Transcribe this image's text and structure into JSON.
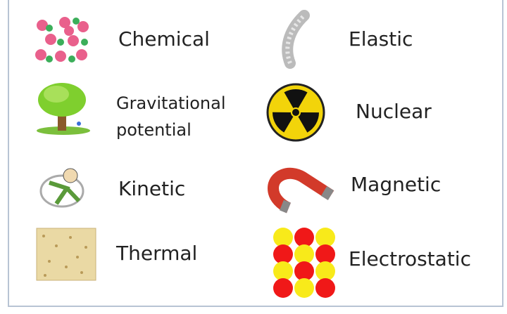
{
  "items": [
    {
      "lines": [
        "Chemical"
      ]
    },
    {
      "lines": [
        "Elastic"
      ]
    },
    {
      "lines": [
        "Gravitational",
        "potential"
      ]
    },
    {
      "lines": [
        "Nuclear"
      ]
    },
    {
      "lines": [
        "Kinetic"
      ]
    },
    {
      "lines": [
        "Magnetic"
      ]
    },
    {
      "lines": [
        "Thermal"
      ]
    },
    {
      "lines": [
        "Electrostatic"
      ]
    }
  ]
}
